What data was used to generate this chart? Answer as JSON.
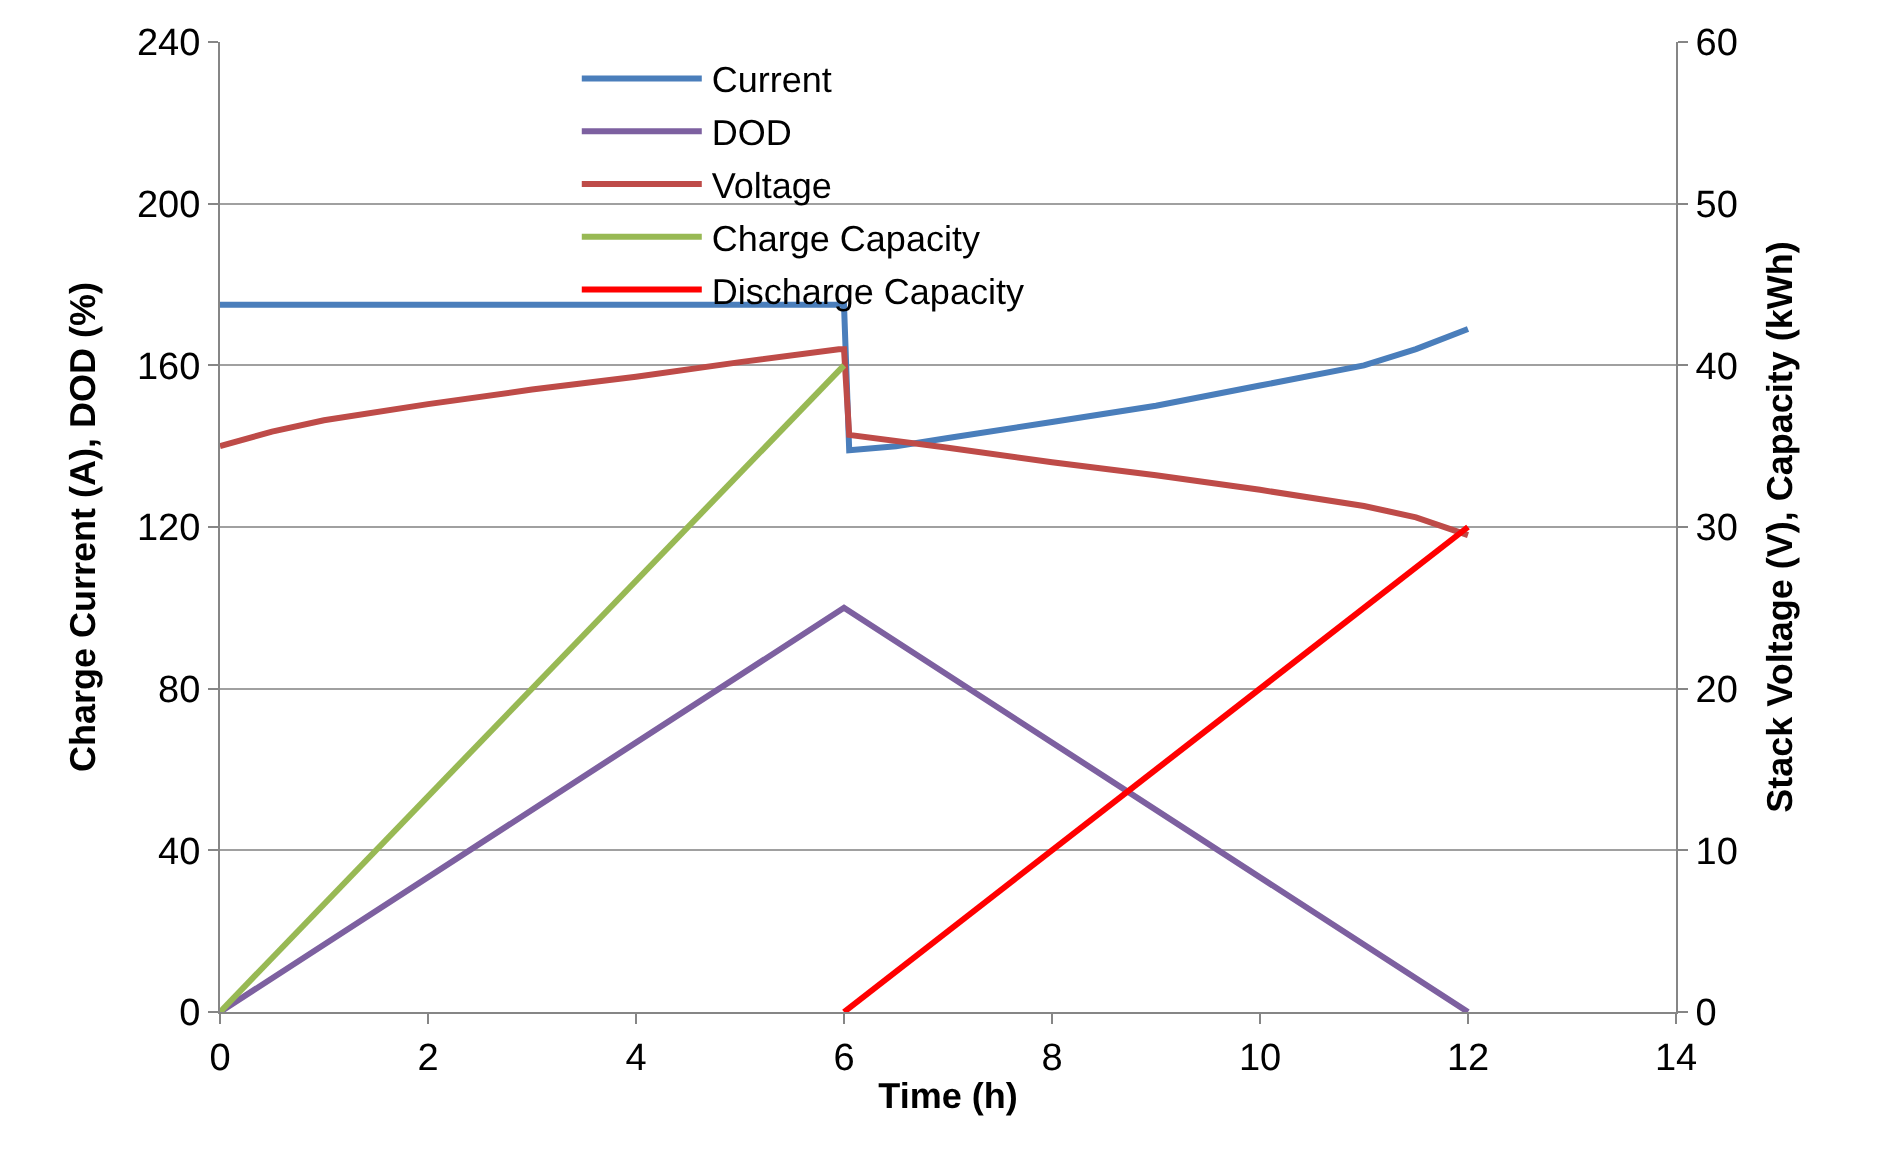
{
  "chart_data": {
    "type": "line",
    "xlabel": "Time (h)",
    "ylabel": "Charge Current (A), DOD (%)",
    "y2label": "Stack Voltage (V), Capacity (kWh)",
    "xlim": [
      0,
      14
    ],
    "xticks": [
      0,
      2,
      4,
      6,
      8,
      10,
      12,
      14
    ],
    "ylim": [
      0,
      240
    ],
    "yticks": [
      0,
      40,
      80,
      120,
      160,
      200,
      240
    ],
    "y2lim": [
      0,
      60
    ],
    "y2ticks": [
      0,
      10,
      20,
      30,
      40,
      50,
      60
    ],
    "grid": "y",
    "legend": "top",
    "marker": "none",
    "line_style": "solid",
    "series": [
      {
        "name": "Current",
        "color": "#4a7ebb",
        "x": [
          0,
          5.95,
          6.0,
          6.05,
          6.5,
          7,
          8,
          9,
          10,
          11,
          11.5,
          12
        ],
        "values": [
          175,
          175,
          175,
          139,
          140,
          142,
          146,
          150,
          155,
          160,
          164,
          169
        ]
      },
      {
        "name": "DOD",
        "color": "#7d60a0",
        "x": [
          0,
          6,
          12
        ],
        "values": [
          0,
          100,
          0
        ]
      },
      {
        "name": "Voltage",
        "color": "#be4b48",
        "axis": "y2",
        "x": [
          0,
          0.5,
          1,
          2,
          3,
          4,
          5,
          5.95,
          6.0,
          6.05,
          7,
          8,
          9,
          10,
          11,
          11.5,
          12
        ],
        "values": [
          35,
          35.9,
          36.6,
          37.6,
          38.5,
          39.3,
          40.2,
          41,
          41,
          35.7,
          34.9,
          34,
          33.2,
          32.3,
          31.3,
          30.6,
          29.5
        ]
      },
      {
        "name": "Charge Capacity",
        "color": "#98b954",
        "axis": "y2",
        "x": [
          0,
          6
        ],
        "values": [
          0,
          40
        ]
      },
      {
        "name": "Discharge Capacity",
        "color": "#ff0000",
        "axis": "y2",
        "x": [
          6,
          12
        ],
        "values": [
          0,
          30
        ]
      }
    ]
  }
}
